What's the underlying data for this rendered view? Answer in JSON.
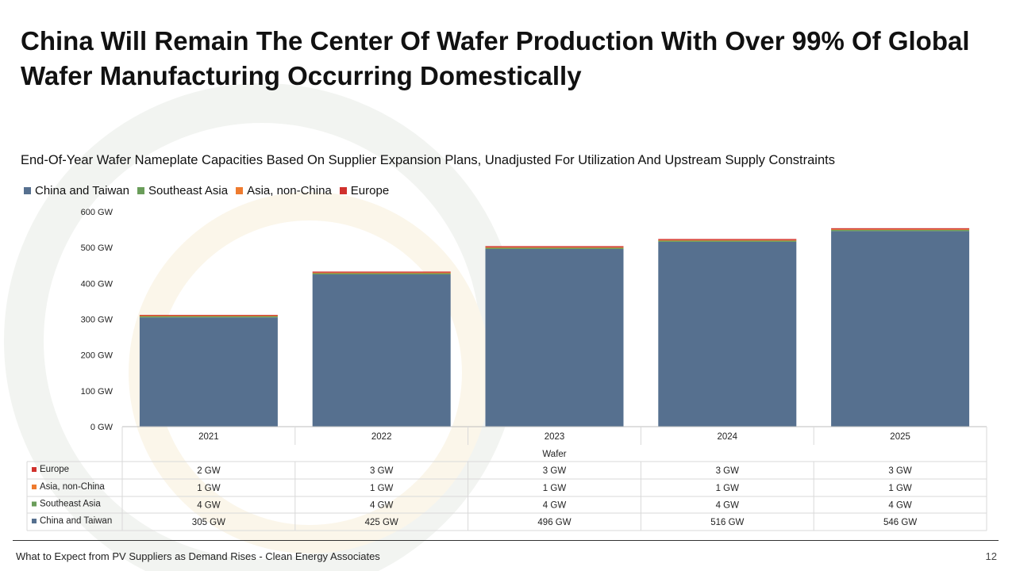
{
  "slide": {
    "title": "China Will Remain The Center Of Wafer Production With Over 99% Of Global Wafer Manufacturing Occurring Domestically",
    "footer": "What to Expect from PV Suppliers as Demand Rises - Clean Energy Associates",
    "page_number": "12"
  },
  "chart_data": {
    "type": "bar",
    "stacked": true,
    "title": "End-Of-Year Wafer Nameplate Capacities Based On Supplier Expansion Plans, Unadjusted For Utilization And Upstream Supply Constraints",
    "categories": [
      "2021",
      "2022",
      "2023",
      "2024",
      "2025"
    ],
    "category_group": "Wafer",
    "series": [
      {
        "name": "China and Taiwan",
        "color": "#56708f",
        "values": [
          305,
          425,
          496,
          516,
          546
        ],
        "labels": [
          "305 GW",
          "425 GW",
          "496 GW",
          "516 GW",
          "546 GW"
        ]
      },
      {
        "name": "Southeast Asia",
        "color": "#6a9d5a",
        "values": [
          4,
          4,
          4,
          4,
          4
        ],
        "labels": [
          "4 GW",
          "4 GW",
          "4 GW",
          "4 GW",
          "4 GW"
        ]
      },
      {
        "name": "Asia, non-China",
        "color": "#ee7b2f",
        "values": [
          1,
          1,
          1,
          1,
          1
        ],
        "labels": [
          "1 GW",
          "1 GW",
          "1 GW",
          "1 GW",
          "1 GW"
        ]
      },
      {
        "name": "Europe",
        "color": "#d0312d",
        "values": [
          2,
          3,
          3,
          3,
          3
        ],
        "labels": [
          "2 GW",
          "3 GW",
          "3 GW",
          "3 GW",
          "3 GW"
        ]
      }
    ],
    "ylim": [
      0,
      600
    ],
    "y_ticks": [
      "0 GW",
      "100 GW",
      "200 GW",
      "300 GW",
      "400 GW",
      "500 GW",
      "600 GW"
    ],
    "grid": false,
    "legend_position": "top-left",
    "data_table": true
  }
}
